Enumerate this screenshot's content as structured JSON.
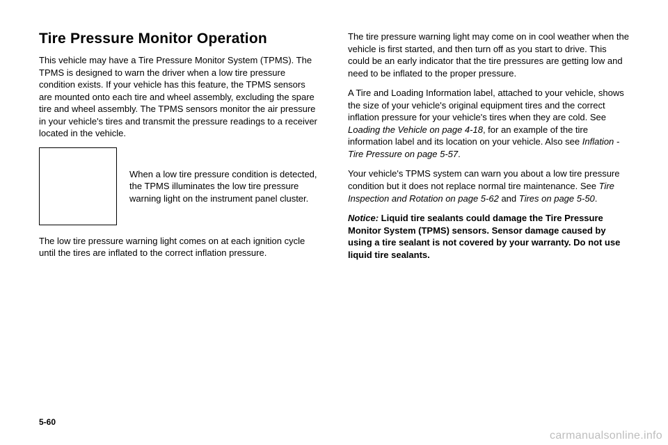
{
  "title": "Tire Pressure Monitor Operation",
  "left": {
    "p1": "This vehicle may have a Tire Pressure Monitor System (TPMS). The TPMS is designed to warn the driver when a low tire pressure condition exists. If your vehicle has this feature, the TPMS sensors are mounted onto each tire and wheel assembly, excluding the spare tire and wheel assembly. The TPMS sensors monitor the air pressure in your vehicle's tires and transmit the pressure readings to a receiver located in the vehicle.",
    "icon_caption": "When a low tire pressure condition is detected, the TPMS illuminates the low tire pressure warning light on the instrument panel cluster.",
    "p2": "The low tire pressure warning light comes on at each ignition cycle until the tires are inflated to the correct inflation pressure."
  },
  "right": {
    "p1": "The tire pressure warning light may come on in cool weather when the vehicle is first started, and then turn off as you start to drive. This could be an early indicator that the tire pressures are getting low and need to be inflated to the proper pressure.",
    "p2a": "A Tire and Loading Information label, attached to your vehicle, shows the size of your vehicle's original equipment tires and the correct inflation pressure for your vehicle's tires when they are cold. See ",
    "p2b": "Loading the Vehicle on page 4-18",
    "p2c": ", for an example of the tire information label and its location on your vehicle. Also see ",
    "p2d": "Inflation - Tire Pressure on page 5-57",
    "p2e": ".",
    "p3a": "Your vehicle's TPMS system can warn you about a low tire pressure condition but it does not replace normal tire maintenance. See ",
    "p3b": "Tire Inspection and Rotation on page 5-62",
    "p3c": " and ",
    "p3d": "Tires on page 5-50",
    "p3e": ".",
    "p4a": "Notice:",
    "p4b": "   Liquid tire sealants could damage the Tire Pressure Monitor System (TPMS) sensors. Sensor damage caused by using a tire sealant is not covered by your warranty. Do not use liquid tire sealants."
  },
  "footer": {
    "page": "5-60",
    "watermark": "carmanualsonline.info"
  }
}
